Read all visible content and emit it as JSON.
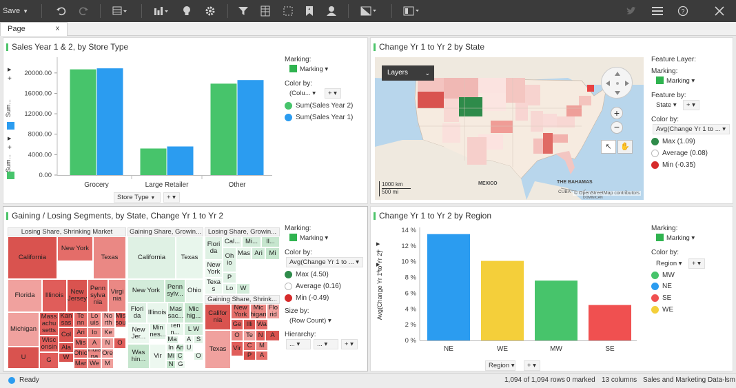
{
  "toolbar": {
    "save_label": "Save"
  },
  "tab": {
    "label": "Page",
    "close": "x"
  },
  "panel1": {
    "title": "Sales Year 1 & 2, by Store Type",
    "marking_label": "Marking:",
    "marking_value": "Marking",
    "colorby_label": "Color by:",
    "colorby_value": "(Colu...",
    "legend": [
      "Sum(Sales Year 2)",
      "Sum(Sales Year 1)"
    ],
    "axis_selector": "Store Type",
    "yaxis_top": "Sum...",
    "yaxis_bottom": "Sum..."
  },
  "panel2": {
    "title": "Change Yr 1 to Yr 2 by State",
    "layers": "Layers",
    "feature_layer_label": "Feature Layer:",
    "marking_label": "Marking:",
    "marking_value": "Marking",
    "feature_by_label": "Feature by:",
    "feature_by_value": "State",
    "colorby_label": "Color by:",
    "colorby_value": "Avg(Change Yr 1 to ...",
    "legend": [
      "Max (1.09)",
      "Average (0.08)",
      "Min (-0.35)"
    ],
    "scale_km": "1000 km",
    "scale_mi": "500 mi",
    "label_mexico": "MEXICO",
    "label_bahamas": "THE BAHAMAS",
    "label_cuba": "CUBA",
    "attribution": "© OpenStreetMap contributors",
    "label_dominican": "DOMINICAN"
  },
  "panel3": {
    "title": "Gaining / Losing Segments, by State, Change Yr 1 to Yr 2",
    "marking_label": "Marking:",
    "marking_value": "Marking",
    "colorby_label": "Color by:",
    "colorby_value": "Avg(Change Yr 1 to ...",
    "legend": [
      "Max (4.50)",
      "Average (0.16)",
      "Min (-0.49)"
    ],
    "sizeby_label": "Size by:",
    "sizeby_value": "(Row Count)",
    "hierarchy_label": "Hierarchy:",
    "hier1": "...",
    "hier2": "...",
    "groups": [
      "Losing Share, Shrinking Market",
      "Gaining Share, Growin...",
      "Losing Share, Growin...",
      "Gaining Share, Shrink..."
    ]
  },
  "panel4": {
    "title": "Change Yr 1 to Yr 2 by Region",
    "marking_label": "Marking:",
    "marking_value": "Marking",
    "colorby_label": "Color by:",
    "colorby_value": "Region",
    "legend": [
      "MW",
      "NE",
      "SE",
      "WE"
    ],
    "axis_selector": "Region"
  },
  "status": {
    "ready": "Ready",
    "rows": "1,094 of 1,094 rows",
    "marked": "0 marked",
    "columns": "13 columns",
    "source": "Sales and Marketing Data-lsm"
  },
  "colors": {
    "green": "#47c46b",
    "blue": "#2b9cf0",
    "yellow": "#f4cf3a",
    "red": "#f05050"
  },
  "chart_data": [
    {
      "type": "bar",
      "title": "Sales Year 1 & 2, by Store Type",
      "categories": [
        "Grocery",
        "Large Retailer",
        "Other"
      ],
      "series": [
        {
          "name": "Sum(Sales Year 2)",
          "values": [
            20700,
            5200,
            17900
          ]
        },
        {
          "name": "Sum(Sales Year 1)",
          "values": [
            20900,
            5600,
            18600
          ]
        }
      ],
      "ylim": [
        0,
        22000
      ],
      "yticks": [
        "20000.00",
        "16000.00",
        "12000.00",
        "8000.00",
        "4000.00",
        "0.00"
      ],
      "ytick_values": [
        20000,
        16000,
        12000,
        8000,
        4000,
        0
      ]
    },
    {
      "type": "bar",
      "title": "Change Yr 1 to Yr 2 by Region",
      "ylabel": "Avg(Change Yr 1 to Yr 2)",
      "categories": [
        "NE",
        "WE",
        "MW",
        "SE"
      ],
      "values": [
        13.5,
        10.1,
        7.6,
        4.5
      ],
      "ylim": [
        0,
        14
      ],
      "yticks": [
        "14 %",
        "12 %",
        "10 %",
        "8 %",
        "6 %",
        "4 %",
        "2 %",
        "0 %"
      ],
      "ytick_values": [
        14,
        12,
        10,
        8,
        6,
        4,
        2,
        0
      ]
    }
  ],
  "treemap": {
    "g1": [
      "California",
      "New York",
      "Texas",
      "Florida",
      "Illinois",
      "New Jersey",
      "Penn sylva nia",
      "Virgi nia",
      "Michigan",
      "Mass achu setts",
      "Kan sas",
      "Te nn",
      "Lo uis",
      "No rth",
      "Mis sou",
      "Col",
      "Ari",
      "Io",
      "Ke",
      "Wisc onsin",
      "Ala",
      "Mis",
      "A",
      "N",
      "O",
      "U",
      "Ohio",
      "India na",
      "Ore",
      "G",
      "W",
      "Mar",
      "We",
      "M"
    ],
    "g2": [
      "California",
      "Texas",
      "New York",
      "Penn sylv...",
      "Ohio",
      "Flori da",
      "Illinois",
      "Mas sac...",
      "Mic hig...",
      "New Jer...",
      "Min nes...",
      "Ten n...",
      "L W",
      "Was hin...",
      "Vir",
      "Ma",
      "In",
      "Mi",
      "Ari",
      "A",
      "S",
      "U",
      "C",
      "N",
      "G",
      "O"
    ],
    "g3": [
      "Flori da",
      "Cal...",
      "Mi...",
      "Il...",
      "New York",
      "Oh io",
      "Mas",
      "Ari",
      "Mi",
      "Texa s",
      "P",
      "Lo",
      "W"
    ],
    "g4": [
      "Califor nia",
      "New York",
      "Mic higan",
      "Flo rid",
      "Ge",
      "Illi",
      "Wa",
      "O",
      "Te",
      "N",
      "A",
      "C",
      "M",
      "Texas",
      "Vir",
      "P",
      "A"
    ]
  }
}
